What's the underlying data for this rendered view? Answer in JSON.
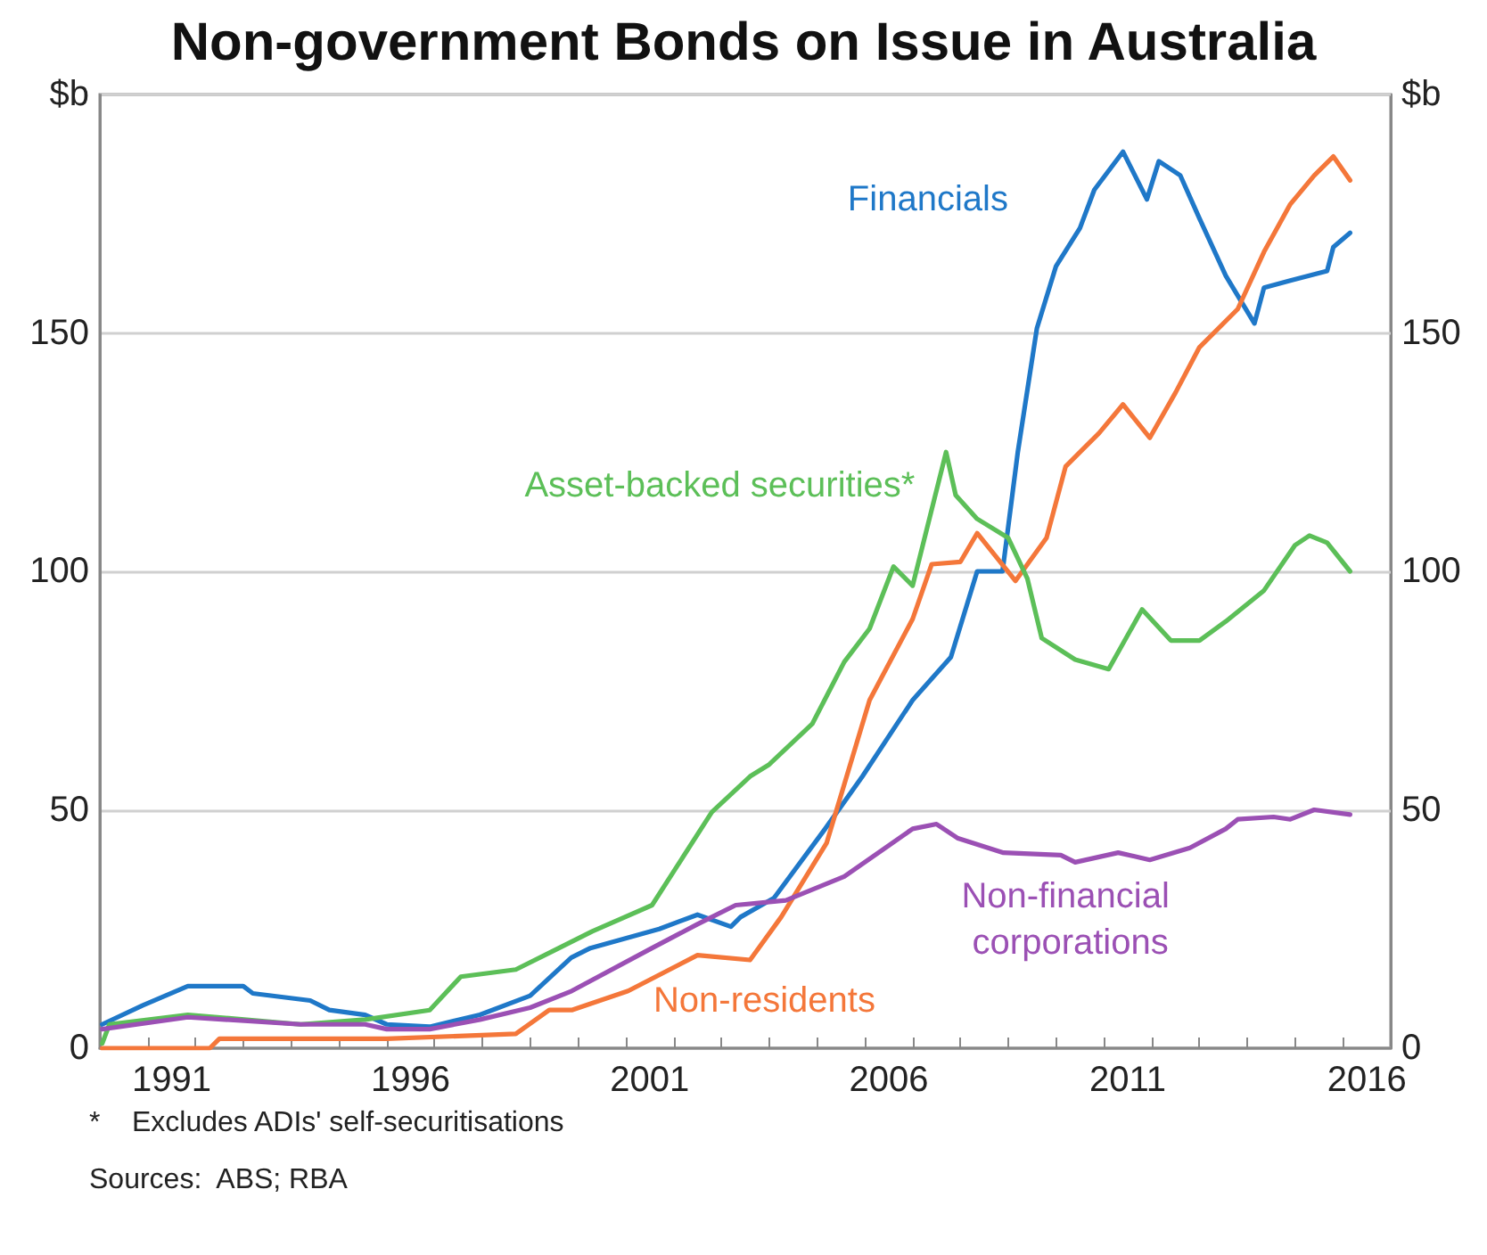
{
  "chart_data": {
    "type": "line",
    "title": "Non-government Bonds on Issue in Australia",
    "annotations": [
      "*    Excludes ADIs' self-securitisations",
      "Sources:  ABS; RBA"
    ],
    "xlim": [
      1990,
      2017
    ],
    "xticks": [
      {
        "value": 1990,
        "label": null
      },
      {
        "value": 1991,
        "label": null
      },
      {
        "value": 1991.5,
        "label": "1991"
      },
      {
        "value": 1992,
        "label": null
      },
      {
        "value": 1993,
        "label": null
      },
      {
        "value": 1994,
        "label": null
      },
      {
        "value": 1995,
        "label": null
      },
      {
        "value": 1996,
        "label": null
      },
      {
        "value": 1996.5,
        "label": "1996"
      },
      {
        "value": 1997,
        "label": null
      },
      {
        "value": 1998,
        "label": null
      },
      {
        "value": 1999,
        "label": null
      },
      {
        "value": 2000,
        "label": null
      },
      {
        "value": 2001,
        "label": null
      },
      {
        "value": 2001.5,
        "label": "2001"
      },
      {
        "value": 2002,
        "label": null
      },
      {
        "value": 2003,
        "label": null
      },
      {
        "value": 2004,
        "label": null
      },
      {
        "value": 2005,
        "label": null
      },
      {
        "value": 2006,
        "label": null
      },
      {
        "value": 2006.5,
        "label": "2006"
      },
      {
        "value": 2007,
        "label": null
      },
      {
        "value": 2008,
        "label": null
      },
      {
        "value": 2009,
        "label": null
      },
      {
        "value": 2010,
        "label": null
      },
      {
        "value": 2011,
        "label": null
      },
      {
        "value": 2011.5,
        "label": "2011"
      },
      {
        "value": 2012,
        "label": null
      },
      {
        "value": 2013,
        "label": null
      },
      {
        "value": 2014,
        "label": null
      },
      {
        "value": 2015,
        "label": null
      },
      {
        "value": 2016,
        "label": null
      },
      {
        "value": 2016.5,
        "label": "2016"
      }
    ],
    "ylim": [
      0,
      200
    ],
    "yticks": [
      0,
      50,
      100,
      150,
      {
        "value": 200,
        "label": "$b"
      }
    ],
    "y2lim": [
      0,
      200
    ],
    "y2ticks": [
      0,
      50,
      100,
      150,
      {
        "value": 200,
        "label": "$b"
      }
    ],
    "grid": "y",
    "legend": false,
    "marker": "none",
    "line_style": "solid",
    "series": [
      {
        "name": "Financials",
        "color": "#1f78c8",
        "x": [
          1990.05,
          1990.9,
          1991.84,
          1993.0,
          1993.2,
          1994.4,
          1994.8,
          1995.55,
          1996.0,
          1996.9,
          1997.95,
          1999.0,
          1999.86,
          2000.26,
          2001.7,
          2002.5,
          2003.2,
          2003.4,
          2004.1,
          2005.17,
          2005.95,
          2007.0,
          2007.8,
          2008.35,
          2008.88,
          2009.2,
          2009.6,
          2010.0,
          2010.5,
          2010.8,
          2011.4,
          2011.9,
          2012.15,
          2012.6,
          2013.0,
          2013.55,
          2014.15,
          2014.35,
          2014.9,
          2015.67,
          2015.8,
          2016.15
        ],
        "values": [
          5,
          9,
          13,
          13,
          11.5,
          10,
          8,
          7,
          5,
          4.5,
          7,
          11,
          19,
          21,
          25,
          28,
          25.5,
          27.5,
          31.5,
          46,
          57,
          73,
          82,
          100,
          100,
          125,
          151,
          164,
          172,
          180,
          188,
          178,
          186,
          183,
          174,
          162,
          152,
          159.5,
          161,
          163,
          168,
          171
        ]
      },
      {
        "name": "Non-residents",
        "color": "#f4773a",
        "x": [
          1990.05,
          1992.3,
          1992.5,
          1996.0,
          1998.7,
          1999.4,
          1999.87,
          2001.05,
          2002.5,
          2003.6,
          2004.25,
          2005.2,
          2006.1,
          2007.0,
          2007.4,
          2008.0,
          2008.35,
          2009.15,
          2009.8,
          2010.2,
          2010.9,
          2011.4,
          2011.96,
          2012.5,
          2013.0,
          2013.8,
          2014.35,
          2014.9,
          2015.4,
          2015.8,
          2016.15
        ],
        "values": [
          0,
          0,
          2,
          2,
          3,
          8,
          8,
          12,
          19.5,
          18.5,
          27.5,
          43,
          73,
          90,
          101.5,
          102,
          108,
          98,
          107,
          122,
          129,
          135,
          128,
          137.5,
          147,
          155,
          167,
          177,
          183,
          187,
          182
        ]
      },
      {
        "name": "Asset-backed securities*",
        "color": "#5cbf58",
        "x": [
          1990.05,
          1990.2,
          1991.84,
          1994.2,
          1995.55,
          1996.9,
          1997.55,
          1998.7,
          1999.5,
          2000.3,
          2001.55,
          2002.8,
          2003.6,
          2004.0,
          2004.9,
          2005.57,
          2006.1,
          2006.6,
          2007.0,
          2007.7,
          2007.9,
          2008.35,
          2009.0,
          2009.4,
          2009.7,
          2010.4,
          2011.1,
          2011.8,
          2012.4,
          2013.0,
          2013.55,
          2014.35,
          2015.0,
          2015.3,
          2015.67,
          2016.15
        ],
        "values": [
          1,
          5,
          7,
          5,
          6,
          8,
          15,
          16.5,
          20.5,
          24.5,
          30,
          49.5,
          57,
          59.5,
          68,
          81,
          88,
          101,
          97,
          125,
          116,
          111,
          107,
          98.5,
          86,
          81.5,
          79.5,
          92,
          85.5,
          85.5,
          89.5,
          96,
          105.5,
          107.5,
          106,
          100
        ]
      },
      {
        "name": "Non-financial corporations",
        "color": "#9b50b4",
        "x": [
          1990.05,
          1991.84,
          1994.2,
          1995.55,
          1996.0,
          1996.9,
          1997.95,
          1999.0,
          1999.87,
          2001.55,
          2002.5,
          2003.3,
          2004.35,
          2005.57,
          2006.5,
          2007.0,
          2007.5,
          2007.95,
          2008.9,
          2010.1,
          2010.4,
          2011.3,
          2011.96,
          2012.8,
          2013.55,
          2013.8,
          2014.55,
          2014.9,
          2015.4,
          2016.15
        ],
        "values": [
          4,
          6.5,
          5,
          5,
          4,
          4,
          6,
          8.5,
          12,
          21,
          26,
          30,
          31,
          36,
          42.5,
          46,
          47,
          44,
          41,
          40.5,
          39,
          41,
          39.5,
          42,
          46,
          48,
          48.5,
          48,
          50,
          49
        ]
      }
    ]
  }
}
